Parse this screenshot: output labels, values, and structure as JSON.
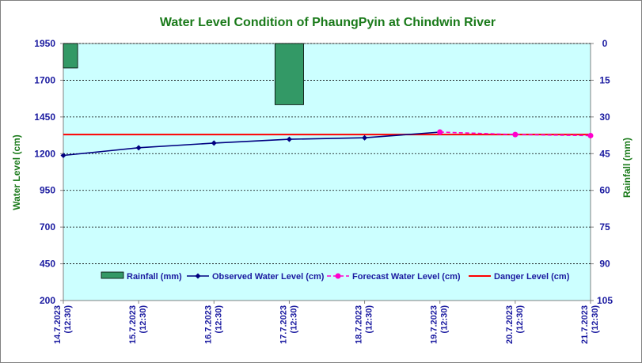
{
  "chart_data": {
    "type": "line",
    "title": "Water Level Condition of PhaungPyin at Chindwin River",
    "ylabel": "Water Level (cm)",
    "y2label": "Rainfall (mm)",
    "ylim": [
      200,
      1950
    ],
    "y2lim": [
      0,
      105
    ],
    "y2_inverted": true,
    "yticks": [
      200,
      450,
      700,
      950,
      1200,
      1450,
      1700,
      1950
    ],
    "y2ticks": [
      0,
      15,
      30,
      45,
      60,
      75,
      90,
      105
    ],
    "x": [
      "14.7.2023 (12:30)",
      "15.7.2023 (12:30)",
      "16.7.2023 (12:30)",
      "17.7.2023 (12:30)",
      "18.7.2023 (12:30)",
      "19.7.2023 (12:30)",
      "20.7.2023 (12:30)",
      "21.7.2023 (12:30)"
    ],
    "legend_position": "bottom-inside",
    "grid": true,
    "series": [
      {
        "name": "Rainfall (mm)",
        "kind": "bar",
        "axis": "right",
        "color": "#339966",
        "values": [
          10,
          null,
          null,
          25,
          null,
          null,
          null,
          null
        ]
      },
      {
        "name": "Observed Water Level (cm)",
        "kind": "line",
        "axis": "left",
        "color": "#000080",
        "values": [
          1188,
          1240,
          1272,
          1298,
          1308,
          1347,
          null,
          null
        ]
      },
      {
        "name": "Forecast Water Level (cm)",
        "kind": "dashed-line",
        "axis": "left",
        "color": "#ff00cc",
        "values": [
          null,
          null,
          null,
          null,
          null,
          1347,
          1330,
          1323
        ]
      },
      {
        "name": "Danger Level (cm)",
        "kind": "hline",
        "axis": "left",
        "color": "#ff0000",
        "value": 1330
      }
    ]
  }
}
